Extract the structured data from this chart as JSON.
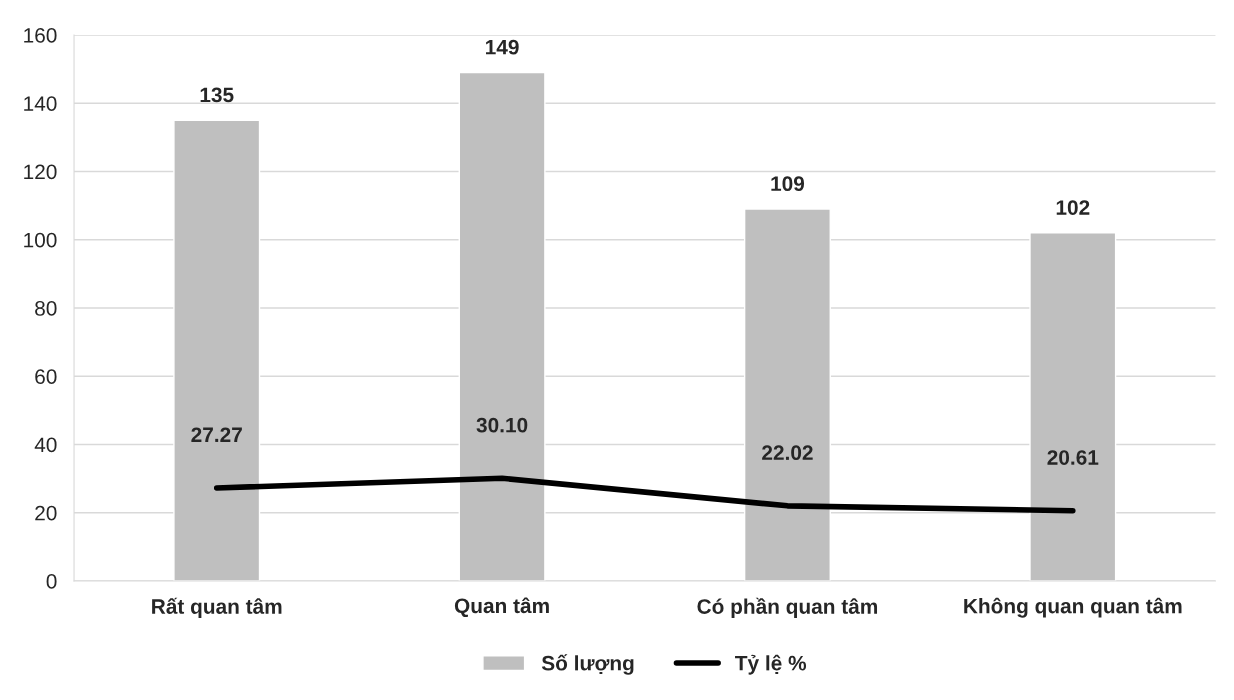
{
  "chart_data": {
    "type": "bar",
    "categories": [
      "Rất quan tâm",
      "Quan tâm",
      "Có phần quan tâm",
      "Không quan quan tâm"
    ],
    "series": [
      {
        "name": "Số lượng",
        "color": "#bfbfbf",
        "values": [
          135,
          149,
          109,
          102
        ],
        "value_labels": [
          "135",
          "149",
          "109",
          "102"
        ]
      },
      {
        "name": "Tỷ lệ %",
        "type": "line",
        "color": "#000000",
        "values": [
          27.27,
          30.1,
          22.02,
          20.61
        ],
        "value_labels": [
          "27.27",
          "30.10",
          "22.02",
          "20.61"
        ],
        "marker": "none",
        "line_style": "solid"
      }
    ],
    "ylim": [
      0,
      160
    ],
    "yticks": [
      0,
      20,
      40,
      60,
      80,
      100,
      120,
      140,
      160
    ],
    "grid": "y",
    "legend": "bottom"
  }
}
